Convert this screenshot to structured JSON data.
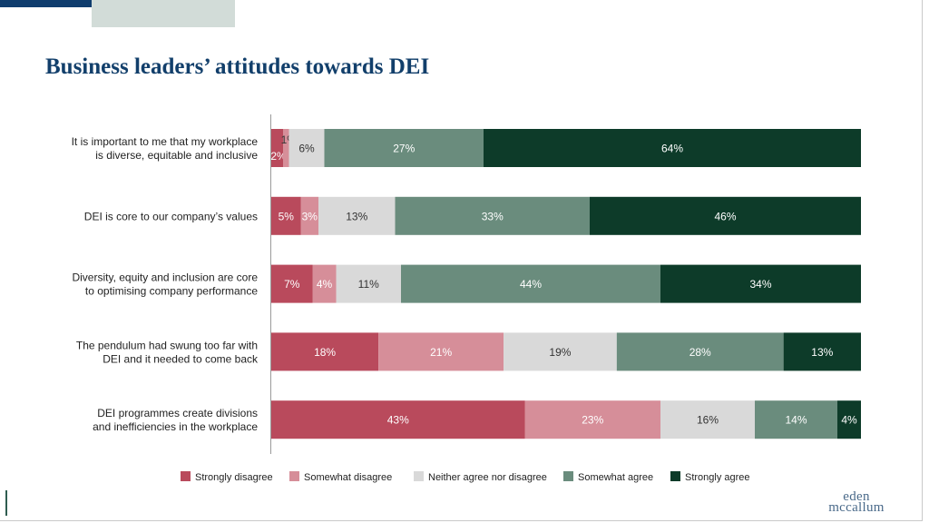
{
  "title": "Business leaders’ attitudes towards DEI",
  "logo": {
    "line1": "eden",
    "line2": "mccallum"
  },
  "colors": {
    "title": "#123f6b",
    "navy_bar": "#0f3d6e",
    "sage_block": "#d2dcd8",
    "label_text": "#222222",
    "segment_text_light": "#ffffff",
    "segment_text_dark": "#333333"
  },
  "chart_data": {
    "type": "bar",
    "orientation": "horizontal",
    "stacked": true,
    "percent_scale": [
      0,
      100
    ],
    "categories": [
      "It is important to me that my workplace is diverse, equitable and inclusive",
      "DEI is core to our company’s values",
      "Diversity, equity and inclusion are core to optimising company performance",
      "The pendulum had swung too far with DEI and it needed to come back",
      "DEI programmes create divisions and inefficiencies in the workplace"
    ],
    "category_lines": [
      [
        "It is important to me that my workplace",
        "is diverse, equitable and inclusive"
      ],
      [
        "DEI is core to our company’s values"
      ],
      [
        "Diversity, equity and inclusion are core",
        "to optimising company performance"
      ],
      [
        "The pendulum had swung too far with",
        "DEI and it needed to come back"
      ],
      [
        "DEI programmes create divisions",
        "and inefficiencies in the workplace"
      ]
    ],
    "series": [
      {
        "name": "Strongly disagree",
        "color": "#b94a5c",
        "dark_text": false,
        "values": [
          2,
          5,
          7,
          18,
          43
        ],
        "labels": [
          "2%",
          "5%",
          "7%",
          "18%",
          "43%"
        ]
      },
      {
        "name": "Somewhat disagree",
        "color": "#d68e99",
        "dark_text": false,
        "values": [
          1,
          3,
          4,
          21,
          23
        ],
        "labels": [
          "1%",
          "3%",
          "4%",
          "21%",
          "23%"
        ]
      },
      {
        "name": "Neither agree nor disagree",
        "color": "#d9d9d9",
        "dark_text": true,
        "values": [
          6,
          13,
          11,
          19,
          16
        ],
        "labels": [
          "6%",
          "13%",
          "11%",
          "19%",
          "16%"
        ]
      },
      {
        "name": "Somewhat agree",
        "color": "#6a8c7d",
        "dark_text": false,
        "values": [
          27,
          33,
          44,
          28,
          14
        ],
        "labels": [
          "27%",
          "33%",
          "44%",
          "28%",
          "14%"
        ]
      },
      {
        "name": "Strongly agree",
        "color": "#0d3b29",
        "dark_text": false,
        "values": [
          64,
          46,
          34,
          13,
          4
        ],
        "labels": [
          "64%",
          "46%",
          "34%",
          "13%",
          "4%"
        ]
      }
    ],
    "legend_position": "bottom",
    "grid": false
  }
}
